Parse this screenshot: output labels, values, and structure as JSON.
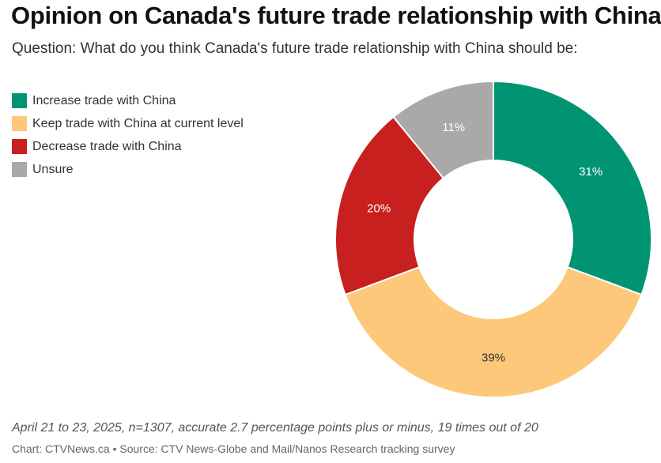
{
  "header": {
    "title": "Opinion on Canada's future trade relationship with China",
    "subtitle": "Question: What do you think Canada's future trade relationship with China should be:"
  },
  "chart_data": {
    "type": "pie",
    "variant": "donut",
    "title": "Opinion on Canada's future trade relationship with China",
    "subtitle": "Question: What do you think Canada's future trade relationship with China should be:",
    "legend_position": "top-left",
    "categories": [
      "Increase trade with China",
      "Keep trade with China at current level",
      "Decrease trade with China",
      "Unsure"
    ],
    "values": [
      31,
      39,
      20,
      11
    ],
    "value_labels": [
      "31%",
      "39%",
      "20%",
      "11%"
    ],
    "colors": [
      "#009473",
      "#fdc879",
      "#c8201e",
      "#a9a9a9"
    ],
    "label_colors": [
      "#ffffff",
      "#333333",
      "#ffffff",
      "#ffffff"
    ]
  },
  "footer": {
    "note": "April 21 to 23, 2025, n=1307, accurate 2.7 percentage points plus or minus, 19 times out of 20",
    "source": "Chart: CTVNews.ca • Source: CTV News-Globe and Mail/Nanos Research tracking survey"
  }
}
